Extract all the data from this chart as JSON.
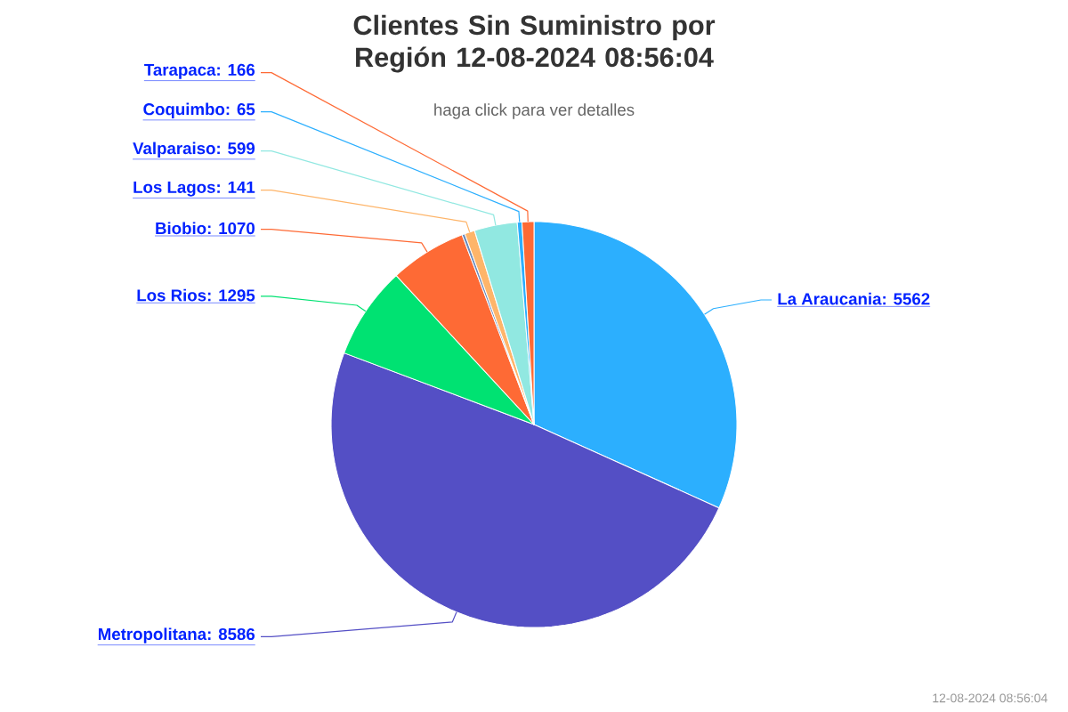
{
  "chart_data": {
    "type": "pie",
    "title": "Clientes Sin Suministro por Región 12-08-2024 08:56:04",
    "subtitle": "haga click para ver detalles",
    "categories": [
      "La Araucania",
      "Metropolitana",
      "Los Rios",
      "Biobio",
      null,
      "Los Lagos",
      "Valparaiso",
      "Coquimbo",
      "Tarapaca"
    ],
    "values": [
      5562,
      8586,
      1295,
      1070,
      40,
      141,
      599,
      65,
      166
    ],
    "colors": [
      "#2caffe",
      "#544fc5",
      "#00e272",
      "#fe6a35",
      "#6b8abc",
      "#feb56a",
      "#91e8e1",
      "#2caffe",
      "#fe6a35"
    ],
    "value_labels": [
      ": 5562",
      ": 8586",
      ": 1295",
      ": 1070",
      null,
      ": 141",
      ": 599",
      ": 65",
      ": 166"
    ],
    "annotations": [
      "12-08-2024 08:56:04"
    ]
  }
}
